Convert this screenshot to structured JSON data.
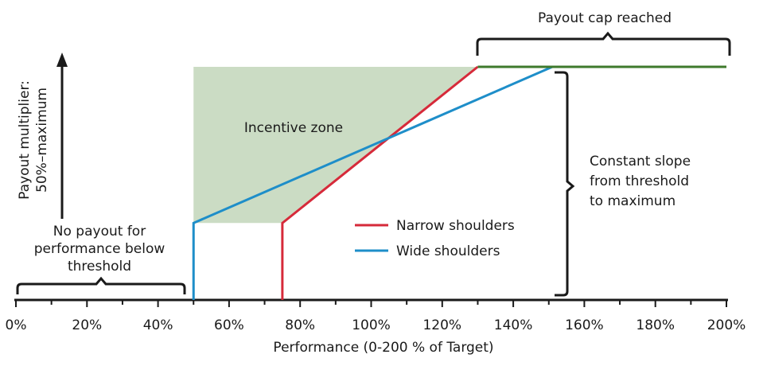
{
  "chart_data": {
    "type": "line",
    "xlabel": "Performance (0-200 % of Target)",
    "ylabel_lines": [
      "Payout multiplier:",
      "50%–maximum"
    ],
    "x_ticks": [
      "0%",
      "20%",
      "40%",
      "60%",
      "80%",
      "100%",
      "120%",
      "140%",
      "160%",
      "180%",
      "200%"
    ],
    "xlim": [
      0,
      200
    ],
    "ylim": [
      0,
      100
    ],
    "series": [
      {
        "name": "Narrow shoulders",
        "color": "#d62a3a",
        "points": [
          [
            75,
            0
          ],
          [
            75,
            33
          ],
          [
            130,
            100
          ]
        ]
      },
      {
        "name": "Wide shoulders",
        "color": "#1e8ec9",
        "points": [
          [
            50,
            0
          ],
          [
            50,
            33
          ],
          [
            151,
            100
          ]
        ]
      },
      {
        "name": "",
        "color": "#3e7a2c",
        "points": [
          [
            130,
            100
          ],
          [
            200,
            100
          ]
        ]
      }
    ],
    "incentive_zone": {
      "label": "Incentive zone",
      "color": "#cbdcc4",
      "points": [
        [
          50,
          33
        ],
        [
          50,
          100
        ],
        [
          130,
          100
        ],
        [
          75,
          33
        ]
      ]
    },
    "legend": [
      {
        "label": "Narrow shoulders",
        "color": "#d62a3a"
      },
      {
        "label": "Wide shoulders",
        "color": "#1e8ec9"
      }
    ],
    "annotations": {
      "cap": "Payout cap reached",
      "no_payout_lines": [
        "No payout for",
        "performance below",
        "threshold"
      ],
      "slope_lines": [
        "Constant slope",
        "from threshold",
        "to maximum"
      ]
    }
  }
}
